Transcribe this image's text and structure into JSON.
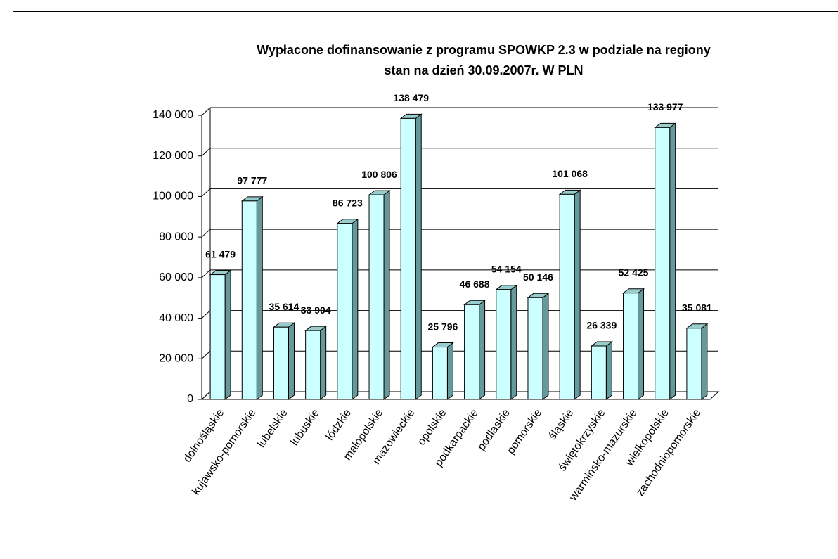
{
  "chart_data": {
    "type": "bar3d",
    "title": "Wypłacone dofinansowanie z programu SPOWKP 2.3 w podziale na regiony",
    "subtitle": "stan na dzień 30.09.2007r. W PLN",
    "categories": [
      "dolnośląskie",
      "kujawsko-pomorskie",
      "lubelskie",
      "lubuskie",
      "łódzkie",
      "małopolskie",
      "mazowieckie",
      "opolskie",
      "podkarpackie",
      "podlaskie",
      "pomorskie",
      "śląskie",
      "świętokrzyskie",
      "warmińsko-mazurskie",
      "wielkopolskie",
      "zachodniopomorskie"
    ],
    "values": [
      61479,
      97777,
      35614,
      33904,
      86723,
      100806,
      138479,
      25796,
      46688,
      54154,
      50146,
      101068,
      26339,
      52425,
      133977,
      35081
    ],
    "value_labels": [
      "61 479",
      "97 777",
      "35 614",
      "33 904",
      "86 723",
      "100 806",
      "138 479",
      "25 796",
      "46 688",
      "54 154",
      "50 146",
      "101 068",
      "26 339",
      "52 425",
      "133 977",
      "35 081"
    ],
    "color": "#ccffff",
    "ylim": [
      0,
      140000
    ],
    "yticks": [
      0,
      {
        "value": 20000,
        "label": "20 000"
      },
      {
        "value": 40000,
        "label": "40 000"
      },
      {
        "value": 60000,
        "label": "60 000"
      },
      {
        "value": 80000,
        "label": "80 000"
      },
      {
        "value": 100000,
        "label": "100 000"
      },
      {
        "value": 120000,
        "label": "120 000"
      },
      {
        "value": 140000,
        "label": "140 000"
      }
    ],
    "grid": true
  }
}
